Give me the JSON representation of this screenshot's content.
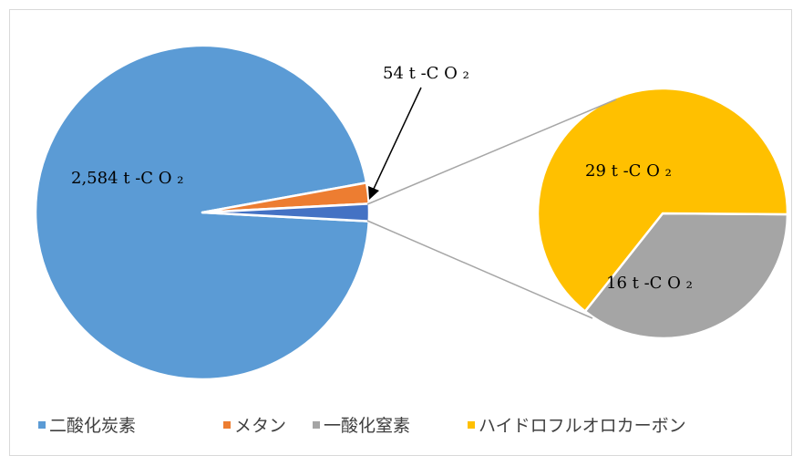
{
  "chart_data": {
    "type": "pie",
    "subtype": "pie-of-pie",
    "title": "",
    "unit": "t-CO₂",
    "series": [
      {
        "name": "二酸化炭素",
        "value": 2584,
        "label": "2,584 t -C O ₂",
        "color": "#5b9bd5"
      },
      {
        "name": "メタン",
        "value": 54,
        "label": "54 t -C O ₂",
        "color": "#ed7d31"
      },
      {
        "name": "一酸化窒素",
        "value": 16,
        "label": "16 t -C O ₂",
        "color": "#a5a5a5"
      },
      {
        "name": "ハイドロフルオロカーボン",
        "value": 29,
        "label": "29 t -C O ₂",
        "color": "#ffc000"
      }
    ],
    "secondary_pie": [
      "ハイドロフルオロカーボン",
      "一酸化窒素"
    ],
    "other_slice_color": "#4472c4",
    "legend_position": "bottom"
  }
}
